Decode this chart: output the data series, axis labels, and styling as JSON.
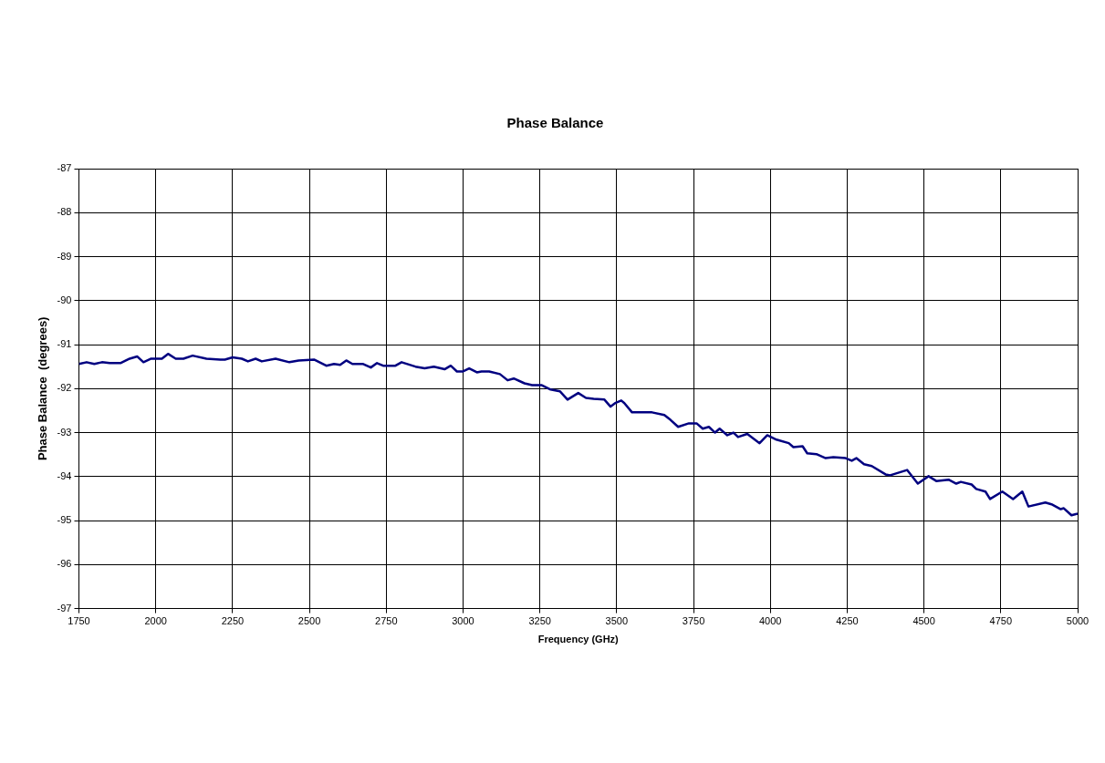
{
  "chart_data": {
    "type": "line",
    "title": "Phase Balance",
    "xlabel": "Frequency (GHz)",
    "ylabel": "Phase Balance  (degrees)",
    "xlim": [
      1750,
      5000
    ],
    "xticks": [
      1750,
      2000,
      2250,
      2500,
      2750,
      3000,
      3250,
      3500,
      3750,
      4000,
      4250,
      4500,
      4750,
      5000
    ],
    "ylim": [
      -97,
      -87
    ],
    "yticks": [
      -97,
      -96,
      -95,
      -94,
      -93,
      -92,
      -91,
      -90,
      -89,
      -88,
      -87
    ],
    "grid": true,
    "legend": false,
    "marker": "none",
    "line_style": "solid",
    "series": [
      {
        "color": "#000080",
        "x": [
          1750,
          1775,
          1800,
          1825,
          1850,
          1885,
          1915,
          1940,
          1960,
          1985,
          2020,
          2040,
          2065,
          2090,
          2120,
          2165,
          2210,
          2225,
          2250,
          2280,
          2300,
          2325,
          2345,
          2390,
          2435,
          2465,
          2515,
          2555,
          2580,
          2600,
          2620,
          2640,
          2675,
          2700,
          2720,
          2740,
          2780,
          2800,
          2845,
          2875,
          2905,
          2940,
          2960,
          2980,
          3000,
          3020,
          3045,
          3060,
          3085,
          3120,
          3145,
          3165,
          3200,
          3225,
          3255,
          3285,
          3315,
          3340,
          3375,
          3400,
          3425,
          3460,
          3480,
          3495,
          3515,
          3525,
          3550,
          3615,
          3655,
          3675,
          3700,
          3735,
          3760,
          3780,
          3800,
          3820,
          3835,
          3860,
          3880,
          3895,
          3925,
          3965,
          3990,
          4020,
          4060,
          4075,
          4105,
          4120,
          4150,
          4180,
          4205,
          4245,
          4265,
          4280,
          4305,
          4330,
          4375,
          4390,
          4445,
          4480,
          4515,
          4540,
          4580,
          4605,
          4620,
          4655,
          4670,
          4700,
          4715,
          4755,
          4790,
          4820,
          4840,
          4895,
          4915,
          4945,
          4955,
          4980,
          5000
        ],
        "values": [
          -91.44,
          -91.4,
          -91.44,
          -91.4,
          -91.42,
          -91.42,
          -91.32,
          -91.27,
          -91.4,
          -91.32,
          -91.32,
          -91.21,
          -91.32,
          -91.32,
          -91.25,
          -91.32,
          -91.34,
          -91.34,
          -91.29,
          -91.32,
          -91.38,
          -91.32,
          -91.38,
          -91.32,
          -91.4,
          -91.36,
          -91.34,
          -91.48,
          -91.44,
          -91.46,
          -91.36,
          -91.44,
          -91.44,
          -91.52,
          -91.42,
          -91.48,
          -91.48,
          -91.4,
          -91.5,
          -91.54,
          -91.5,
          -91.56,
          -91.48,
          -91.61,
          -91.61,
          -91.54,
          -91.63,
          -91.61,
          -91.61,
          -91.67,
          -91.81,
          -91.77,
          -91.88,
          -91.92,
          -91.92,
          -92.02,
          -92.06,
          -92.25,
          -92.1,
          -92.21,
          -92.23,
          -92.25,
          -92.41,
          -92.33,
          -92.27,
          -92.33,
          -92.54,
          -92.54,
          -92.6,
          -92.71,
          -92.87,
          -92.79,
          -92.79,
          -92.91,
          -92.87,
          -93.0,
          -92.91,
          -93.06,
          -93.0,
          -93.1,
          -93.03,
          -93.24,
          -93.06,
          -93.16,
          -93.24,
          -93.33,
          -93.31,
          -93.47,
          -93.49,
          -93.58,
          -93.56,
          -93.58,
          -93.64,
          -93.58,
          -93.72,
          -93.76,
          -93.95,
          -93.97,
          -93.85,
          -94.16,
          -93.99,
          -94.1,
          -94.07,
          -94.16,
          -94.12,
          -94.18,
          -94.28,
          -94.34,
          -94.51,
          -94.34,
          -94.51,
          -94.34,
          -94.68,
          -94.59,
          -94.63,
          -94.74,
          -94.72,
          -94.88,
          -94.84
        ]
      }
    ]
  }
}
